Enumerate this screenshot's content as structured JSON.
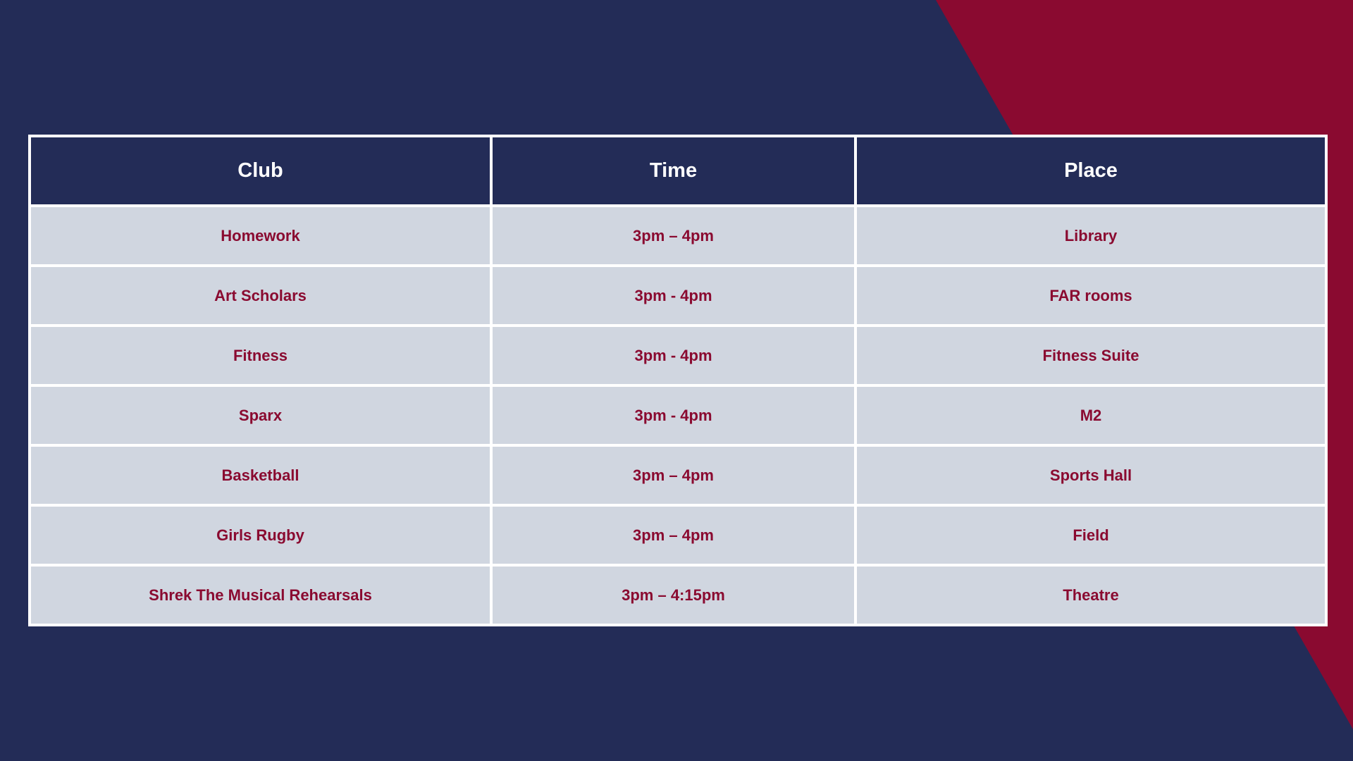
{
  "colors": {
    "background": "#232c57",
    "accent": "#8a0a30",
    "header_bg": "#232c57",
    "header_text": "#ffffff",
    "cell_bg": "#d0d6e0",
    "cell_text": "#8a0a30",
    "grid": "#ffffff"
  },
  "table": {
    "headers": {
      "club": "Club",
      "time": "Time",
      "place": "Place"
    },
    "rows": [
      {
        "club": "Homework",
        "time": "3pm – 4pm",
        "place": "Library"
      },
      {
        "club": "Art Scholars",
        "time": "3pm - 4pm",
        "place": "FAR rooms"
      },
      {
        "club": "Fitness",
        "time": "3pm - 4pm",
        "place": "Fitness Suite"
      },
      {
        "club": "Sparx",
        "time": "3pm - 4pm",
        "place": "M2"
      },
      {
        "club": "Basketball",
        "time": "3pm – 4pm",
        "place": "Sports Hall"
      },
      {
        "club": "Girls Rugby",
        "time": "3pm – 4pm",
        "place": "Field"
      },
      {
        "club": "Shrek The Musical Rehearsals",
        "time": "3pm – 4:15pm",
        "place": "Theatre"
      }
    ]
  }
}
